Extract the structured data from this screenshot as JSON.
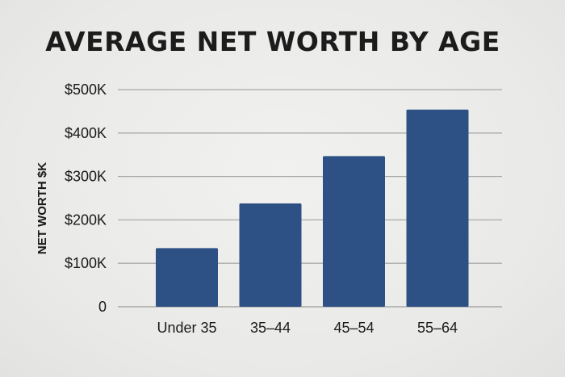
{
  "chart_data": {
    "type": "bar",
    "title": "AVERAGE NET WORTH BY AGE",
    "xlabel": "",
    "ylabel": "NET WORTH $K",
    "categories": [
      "Under 35",
      "35–44",
      "45–54",
      "55–64"
    ],
    "values": [
      135,
      238,
      347,
      454
    ],
    "ylim": [
      0,
      500
    ],
    "yticks": [
      0,
      100,
      200,
      300,
      400,
      500
    ],
    "ytick_labels": [
      "0",
      "$100K",
      "$200K",
      "$300K",
      "$400K",
      "$500K"
    ],
    "grid": true,
    "bar_color": "#2e5185",
    "grid_color": "#a9a9a9"
  }
}
